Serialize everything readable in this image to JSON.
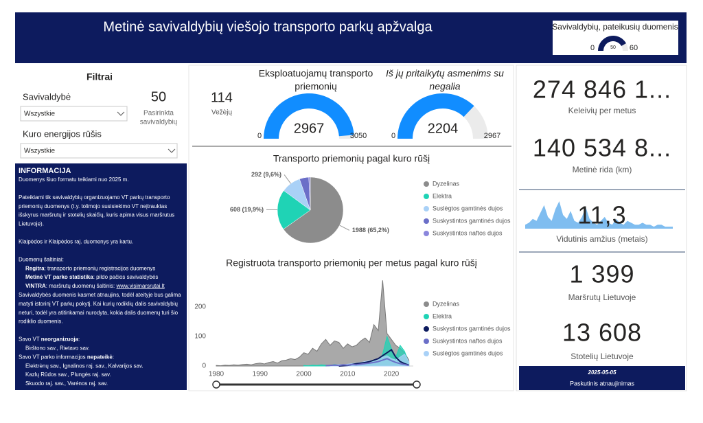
{
  "header": {
    "title": "Metinė savivaldybių viešojo transporto parkų apžvalga"
  },
  "submitted_gauge": {
    "title": "Savivaldybių, pateikusių duomenis",
    "min": 0,
    "value": 50,
    "max": 60
  },
  "filters": {
    "title": "Filtrai",
    "municipality_label": "Savivaldybė",
    "municipality_value": "Wszystkie",
    "selected_count": 50,
    "selected_label": [
      "Pasirinkta",
      "savivaldybių"
    ],
    "fuel_label": "Kuro energijos rūšis",
    "fuel_value": "Wszystkie"
  },
  "info": {
    "title": "INFORMACIJA",
    "paragraphs": [
      [
        {
          "parts": [
            {
              "text": "Duomenys šiuo formatu teikiami nuo 2025 m."
            }
          ]
        }
      ],
      [
        {
          "parts": [
            {
              "text": "Pateikiami tik savivaldybių organizuojamo VT parkų transporto"
            }
          ]
        },
        {
          "parts": [
            {
              "text": "priemonių duomenys (t.y. tolimojo susisiekimo VT neįtrauktas"
            }
          ]
        },
        {
          "parts": [
            {
              "text": "išskyrus maršrutų ir stotelių skaičių, kuris apima visus maršrutus"
            }
          ]
        },
        {
          "parts": [
            {
              "text": "Lietuvoje)."
            }
          ]
        }
      ],
      [
        {
          "parts": [
            {
              "text": "Klaipėdos ir Klaipėdos raj. duomenys yra kartu."
            }
          ]
        }
      ],
      [
        {
          "parts": [
            {
              "text": "Duomenų šaltiniai:"
            }
          ]
        },
        {
          "indent": true,
          "parts": [
            {
              "text": "Regitra",
              "bold": true
            },
            {
              "text": ": transporto priemonių registracijos duomenys"
            }
          ]
        },
        {
          "indent": true,
          "parts": [
            {
              "text": "Metinė VT parko statistika",
              "bold": true
            },
            {
              "text": ": pildo pačios savivaldybės"
            }
          ]
        },
        {
          "indent": true,
          "parts": [
            {
              "text": "VINTRA",
              "bold": true
            },
            {
              "text": ": maršrutų duomenų šaltinis: "
            },
            {
              "text": "www.visimarsrutai.lt",
              "link": true
            }
          ]
        },
        {
          "parts": [
            {
              "text": "Savivaldybės duomenis kasmet atnaujins, todėl ateityje bus galima"
            }
          ]
        },
        {
          "parts": [
            {
              "text": "matyti istorinį VT parkų pokytį. Kai kurių rodiklių dalis savivaldybių"
            }
          ]
        },
        {
          "parts": [
            {
              "text": "neturi, todėl yra atitinkamai nurodyta, kokia dalis duomenų turi šio"
            }
          ]
        },
        {
          "parts": [
            {
              "text": "rodiklio duomenis."
            }
          ]
        }
      ],
      [
        {
          "parts": [
            {
              "text": "Savo VT "
            },
            {
              "text": "neorganizuoja",
              "bold": true
            },
            {
              "text": ":"
            }
          ]
        },
        {
          "indent": true,
          "parts": [
            {
              "text": "Birštono sav., Rietavo sav."
            }
          ]
        },
        {
          "parts": [
            {
              "text": "Savo VT parko informacijos "
            },
            {
              "text": "nepateikė",
              "bold": true
            },
            {
              "text": ":"
            }
          ]
        },
        {
          "indent": true,
          "parts": [
            {
              "text": "Elektrėnų sav., Ignalinos raj. sav., Kalvarijos sav."
            }
          ]
        },
        {
          "indent": true,
          "parts": [
            {
              "text": "Kazlų Rūdos sav., Plungės raj. sav."
            }
          ]
        },
        {
          "indent": true,
          "parts": [
            {
              "text": "Skuodo raj. sav., Varėnos raj. sav."
            }
          ]
        }
      ]
    ]
  },
  "carriers": {
    "value": 114,
    "label": "Vežėjų"
  },
  "gauges": [
    {
      "title": [
        "Eksploatuojamų transporto",
        "priemonių"
      ],
      "italic": false,
      "min": 0,
      "value": 2967,
      "max": 3050,
      "color": "#118dff"
    },
    {
      "title": [
        "Iš jų pritaikytų asmenims su",
        "negalia"
      ],
      "italic": true,
      "min": 0,
      "value": 2204,
      "max": 2967,
      "color": "#118dff"
    }
  ],
  "chart_data": [
    {
      "type": "pie",
      "title": "Transporto priemonių pagal kuro rūšį",
      "categories": [
        "Dyzelinas",
        "Elektra",
        "Suslėgtos gamtinės dujos",
        "Suskystintos gamtinės dujos",
        "Suskystintos naftos dujos"
      ],
      "values": [
        1988,
        608,
        292,
        140,
        22
      ],
      "value_labels": [
        "1988 (65,2%)",
        "608 (19,9%)",
        "292 (9,6%)",
        null,
        null
      ],
      "colors": [
        "#8c8c8c",
        "#1fd3b5",
        "#a9d1f7",
        "#6b6fc8",
        "#8a86dc"
      ]
    },
    {
      "type": "line",
      "title": "Registruota transporto priemonių per metus pagal kuro rūšį",
      "x": [
        1980,
        1981,
        1982,
        1983,
        1984,
        1985,
        1986,
        1987,
        1988,
        1989,
        1990,
        1991,
        1992,
        1993,
        1994,
        1995,
        1996,
        1997,
        1998,
        1999,
        2000,
        2001,
        2002,
        2003,
        2004,
        2005,
        2006,
        2007,
        2008,
        2009,
        2010,
        2011,
        2012,
        2013,
        2014,
        2015,
        2016,
        2017,
        2018,
        2019,
        2020,
        2021,
        2022,
        2023,
        2024
      ],
      "xlim": [
        1980,
        2025
      ],
      "xticks": [
        1980,
        1990,
        2000,
        2010,
        2020
      ],
      "ylim": [
        0,
        300
      ],
      "yticks": [
        0,
        100,
        200
      ],
      "grid": false,
      "series": [
        {
          "name": "Dyzelinas",
          "style": "area",
          "color": "#8c8c8c",
          "values": [
            2,
            1,
            3,
            2,
            4,
            3,
            5,
            6,
            4,
            8,
            10,
            7,
            12,
            15,
            10,
            18,
            20,
            25,
            22,
            30,
            45,
            40,
            60,
            50,
            75,
            90,
            70,
            85,
            80,
            60,
            75,
            65,
            70,
            85,
            95,
            80,
            140,
            120,
            290,
            110,
            90,
            70,
            60,
            45,
            20
          ]
        },
        {
          "name": "Elektra",
          "style": "area",
          "color": "#1fd3b5",
          "values": [
            null,
            null,
            null,
            null,
            null,
            null,
            null,
            null,
            null,
            null,
            null,
            null,
            null,
            null,
            null,
            null,
            null,
            null,
            null,
            null,
            2,
            1,
            3,
            2,
            4,
            3,
            2,
            5,
            3,
            4,
            5,
            4,
            6,
            8,
            10,
            6,
            20,
            15,
            40,
            100,
            60,
            30,
            70,
            50,
            10
          ]
        },
        {
          "name": "Suskystintos gamtinės dujos",
          "style": "line",
          "color": "#0d1b5e",
          "values": [
            null,
            null,
            null,
            null,
            null,
            null,
            null,
            null,
            null,
            null,
            null,
            null,
            null,
            null,
            null,
            null,
            null,
            null,
            null,
            null,
            null,
            null,
            null,
            null,
            null,
            null,
            null,
            null,
            0,
            1,
            2,
            5,
            8,
            10,
            12,
            15,
            20,
            25,
            35,
            45,
            55,
            30,
            15,
            8,
            3
          ]
        },
        {
          "name": "Suskystintos naftos dujos",
          "style": "line",
          "color": "#6b6fc8",
          "values": [
            null,
            null,
            null,
            null,
            null,
            null,
            null,
            null,
            null,
            null,
            null,
            null,
            null,
            null,
            null,
            null,
            null,
            null,
            null,
            null,
            null,
            null,
            null,
            null,
            null,
            1,
            2,
            3,
            2,
            4,
            3,
            5,
            4,
            6,
            8,
            10,
            12,
            15,
            20,
            25,
            18,
            12,
            8,
            5,
            2
          ]
        },
        {
          "name": "Suslėgtos gamtinės dujos",
          "style": "area",
          "color": "#a9d1f7",
          "values": [
            null,
            null,
            null,
            null,
            null,
            null,
            null,
            null,
            null,
            null,
            null,
            null,
            null,
            null,
            null,
            null,
            null,
            null,
            null,
            null,
            null,
            null,
            null,
            null,
            null,
            null,
            2,
            3,
            5,
            4,
            6,
            8,
            10,
            12,
            15,
            18,
            20,
            25,
            30,
            35,
            25,
            20,
            30,
            40,
            15
          ]
        }
      ]
    }
  ],
  "kpis": [
    {
      "value": "274 846 1...",
      "label": "Keleivių per metus"
    },
    {
      "value": "140 534 8...",
      "label": "Metinė rida (km)"
    },
    {
      "value": "11,3",
      "label": "Vidutinis amžius (metais)",
      "sparkline": [
        2,
        3,
        5,
        4,
        8,
        12,
        6,
        4,
        10,
        14,
        7,
        5,
        9,
        4,
        3,
        6,
        11,
        5,
        3,
        2,
        4,
        6,
        3,
        2,
        5,
        3,
        2,
        4,
        3,
        2,
        2,
        3,
        2,
        2,
        1,
        2,
        2,
        1,
        1,
        1
      ],
      "color": "#7fbdf0"
    },
    {
      "value": "1 399",
      "label": "Maršrutų Lietuvoje"
    },
    {
      "value": "13 608",
      "label": "Stotelių Lietuvoje"
    }
  ],
  "update": {
    "date": "2025-05-05",
    "label": "Paskutinis atnaujinimas"
  }
}
